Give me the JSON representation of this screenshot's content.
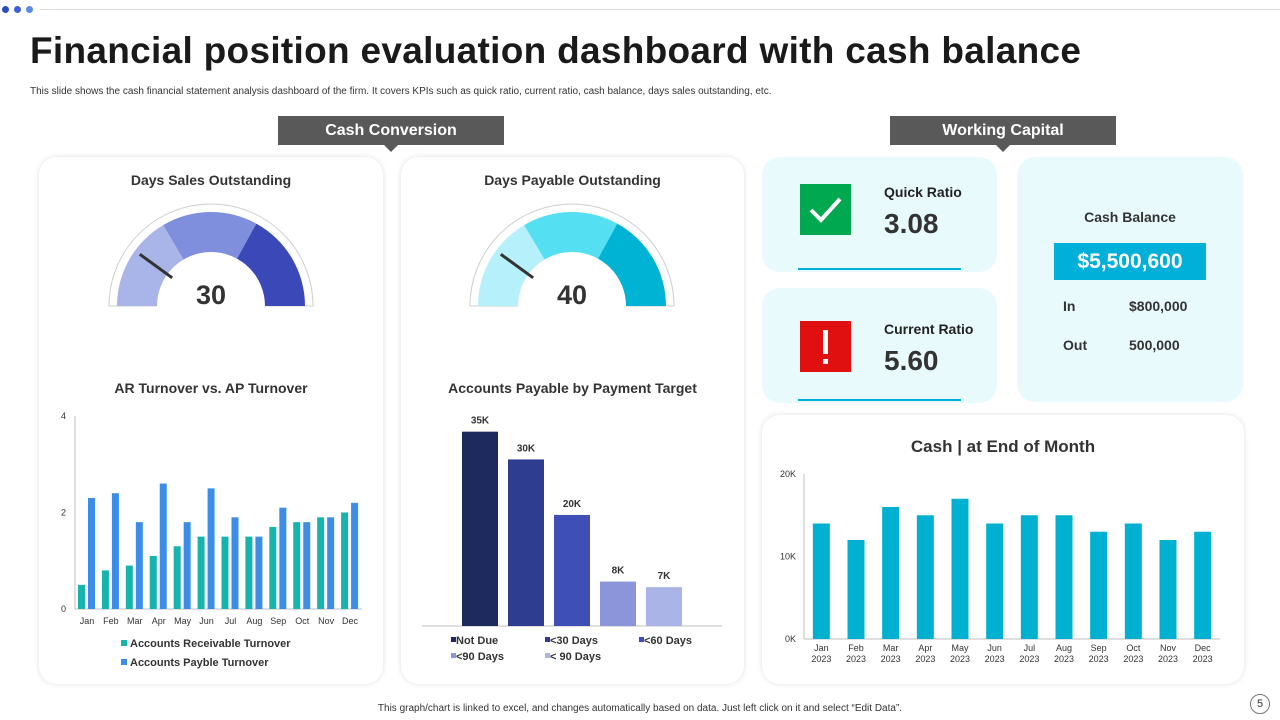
{
  "page": {
    "title": "Financial position evaluation dashboard with cash balance",
    "subtitle": "This slide shows the cash financial statement analysis dashboard of the firm. It covers KPIs such as quick ratio, current ratio, cash balance, days sales outstanding, etc.",
    "footer": "This graph/chart is linked to excel, and changes automatically based on data. Just left click on it and select “Edit Data”.",
    "page_number": "5"
  },
  "sections": {
    "cash_conversion": "Cash Conversion",
    "working_capital": "Working Capital"
  },
  "colors": {
    "accent": "#00b0d8",
    "section_bg": "#595959",
    "tile_bg": "#e9fafd",
    "check_green": "#00a94f",
    "alert_red": "#e01010",
    "dot_colors": [
      "#2b4cc4",
      "#3a5fd6",
      "#5b8be8"
    ]
  },
  "kpis": {
    "quick_ratio": {
      "label": "Quick Ratio",
      "value": "3.08",
      "icon": "check-icon"
    },
    "current_ratio": {
      "label": "Current Ratio",
      "value": "5.60",
      "icon": "exclamation-icon"
    }
  },
  "cash_balance": {
    "label": "Cash Balance",
    "value": "$5,500,600",
    "rows": [
      {
        "label": "In",
        "value": "$800,000"
      },
      {
        "label": "Out",
        "value": "500,000"
      }
    ]
  },
  "chart_data": [
    {
      "id": "dso",
      "type": "gauge",
      "title": "Days Sales Outstanding",
      "value": 30,
      "display_value": "30",
      "bands": [
        {
          "from": 0,
          "to": 33,
          "color": "#a9b4e8"
        },
        {
          "from": 33,
          "to": 66,
          "color": "#7f8fdd"
        },
        {
          "from": 66,
          "to": 100,
          "color": "#3a48b8"
        }
      ],
      "needle": 20,
      "range": [
        0,
        100
      ]
    },
    {
      "id": "dpo",
      "type": "gauge",
      "title": "Days Payable Outstanding",
      "value": 40,
      "display_value": "40",
      "bands": [
        {
          "from": 0,
          "to": 33,
          "color": "#b6f0fb"
        },
        {
          "from": 33,
          "to": 66,
          "color": "#55dff2"
        },
        {
          "from": 66,
          "to": 100,
          "color": "#00b3d4"
        }
      ],
      "needle": 20,
      "range": [
        0,
        100
      ]
    },
    {
      "id": "ar_ap",
      "type": "bar",
      "title": "AR Turnover vs. AP Turnover",
      "categories": [
        "Jan",
        "Feb",
        "Mar",
        "Apr",
        "May",
        "Jun",
        "Jul",
        "Aug",
        "Sep",
        "Oct",
        "Nov",
        "Dec"
      ],
      "series": [
        {
          "name": "Accounts Receivable Turnover",
          "color": "#17b3ad",
          "values": [
            0.5,
            0.8,
            0.9,
            1.1,
            1.3,
            1.5,
            1.5,
            1.5,
            1.7,
            1.8,
            1.9,
            2.0
          ]
        },
        {
          "name": "Accounts Payble Turnover",
          "color": "#3b8de8",
          "values": [
            2.3,
            2.4,
            1.8,
            2.6,
            1.8,
            2.5,
            1.9,
            1.5,
            2.1,
            1.8,
            1.9,
            2.2
          ]
        }
      ],
      "yticks": [
        "0",
        "2",
        "4"
      ],
      "ylim": [
        0,
        4
      ],
      "legend": "bottom"
    },
    {
      "id": "ap_target",
      "type": "bar",
      "title": "Accounts Payable by Payment Target",
      "categories": [
        "Not Due",
        "<30 Days",
        "<60 Days",
        "<90 Days",
        "< 90 Days"
      ],
      "values": [
        35,
        30,
        20,
        8,
        7
      ],
      "labels": [
        "35K",
        "30K",
        "20K",
        "8K",
        "7K"
      ],
      "colors": [
        "#1e2a5e",
        "#2e3d8f",
        "#3f4fb8",
        "#8a96d9",
        "#aab4e6"
      ],
      "ylim": [
        0,
        38
      ],
      "legend": "bottom"
    },
    {
      "id": "cash_eom",
      "type": "bar",
      "title": "Cash | at End of Month",
      "categories": [
        "Jan 2023",
        "Feb 2023",
        "Mar 2023",
        "Apr 2023",
        "May 2023",
        "Jun 2023",
        "Jul 2023",
        "Aug 2023",
        "Sep 2023",
        "Oct 2023",
        "Nov 2023",
        "Dec 2023"
      ],
      "values": [
        14000,
        12000,
        16000,
        15000,
        17000,
        14000,
        15000,
        15000,
        13000,
        14000,
        12000,
        13000
      ],
      "yticks": [
        "0K",
        "10K",
        "20K"
      ],
      "ylim": [
        0,
        20000
      ],
      "color": "#00b0d0"
    }
  ]
}
